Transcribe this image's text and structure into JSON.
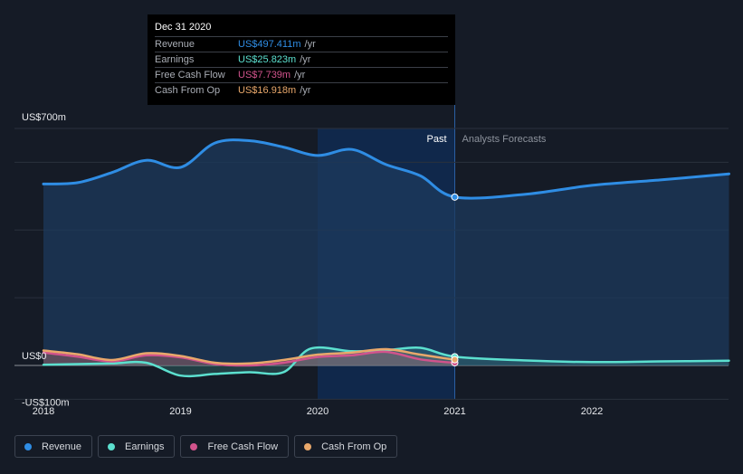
{
  "chart_data": {
    "type": "area",
    "ylim": [
      -100,
      700
    ],
    "y_tick_labels": [
      "US$700m",
      "US$0",
      "-US$100m"
    ],
    "x_tick_labels": [
      "2018",
      "2019",
      "2020",
      "2021",
      "2022"
    ],
    "past_label": "Past",
    "forecast_label": "Analysts Forecasts",
    "grid": true,
    "legend_position": "bottom-left",
    "series": [
      {
        "name": "Revenue",
        "color": "#2f8de4",
        "x": [
          2018.0,
          2018.25,
          2018.5,
          2018.75,
          2019.0,
          2019.25,
          2019.5,
          2019.75,
          2020.0,
          2020.25,
          2020.5,
          2020.75,
          2021.0,
          2021.5,
          2022.0,
          2022.5,
          2023.0
        ],
        "values": [
          536,
          540,
          570,
          606,
          585,
          657,
          664,
          645,
          620,
          638,
          593,
          560,
          497.411,
          505,
          532,
          548,
          566
        ]
      },
      {
        "name": "Earnings",
        "color": "#5ce0cf",
        "x": [
          2018.0,
          2018.25,
          2018.5,
          2018.75,
          2019.0,
          2019.25,
          2019.5,
          2019.75,
          2019.95,
          2020.25,
          2020.5,
          2020.75,
          2021.0,
          2021.5,
          2022.0,
          2022.5,
          2023.0
        ],
        "values": [
          2,
          4,
          6,
          8,
          -30,
          -25,
          -20,
          -20,
          50,
          42,
          45,
          52,
          25.823,
          15,
          10,
          12,
          14
        ]
      },
      {
        "name": "Free Cash Flow",
        "color": "#d1538c",
        "x": [
          2018.0,
          2018.25,
          2018.5,
          2018.75,
          2019.0,
          2019.25,
          2019.5,
          2019.75,
          2020.0,
          2020.25,
          2020.5,
          2020.75,
          2021.0
        ],
        "values": [
          38,
          26,
          12,
          30,
          24,
          4,
          0,
          8,
          25,
          30,
          40,
          18,
          7.739
        ]
      },
      {
        "name": "Cash From Op",
        "color": "#e9a86b",
        "x": [
          2018.0,
          2018.25,
          2018.5,
          2018.75,
          2019.0,
          2019.25,
          2019.5,
          2019.75,
          2020.0,
          2020.25,
          2020.5,
          2020.75,
          2021.0
        ],
        "values": [
          44,
          33,
          16,
          36,
          28,
          8,
          6,
          16,
          32,
          38,
          48,
          32,
          16.918
        ]
      }
    ]
  },
  "tooltip": {
    "date": "Dec 31 2020",
    "unit": "/yr",
    "rows": [
      {
        "label": "Revenue",
        "value": "US$497.411m",
        "color": "#2f8de4"
      },
      {
        "label": "Earnings",
        "value": "US$25.823m",
        "color": "#5ce0cf"
      },
      {
        "label": "Free Cash Flow",
        "value": "US$7.739m",
        "color": "#d1538c"
      },
      {
        "label": "Cash From Op",
        "value": "US$16.918m",
        "color": "#e9a86b"
      }
    ]
  },
  "legend": [
    {
      "label": "Revenue",
      "color": "#2f8de4"
    },
    {
      "label": "Earnings",
      "color": "#5ce0cf"
    },
    {
      "label": "Free Cash Flow",
      "color": "#d1538c"
    },
    {
      "label": "Cash From Op",
      "color": "#e9a86b"
    }
  ]
}
